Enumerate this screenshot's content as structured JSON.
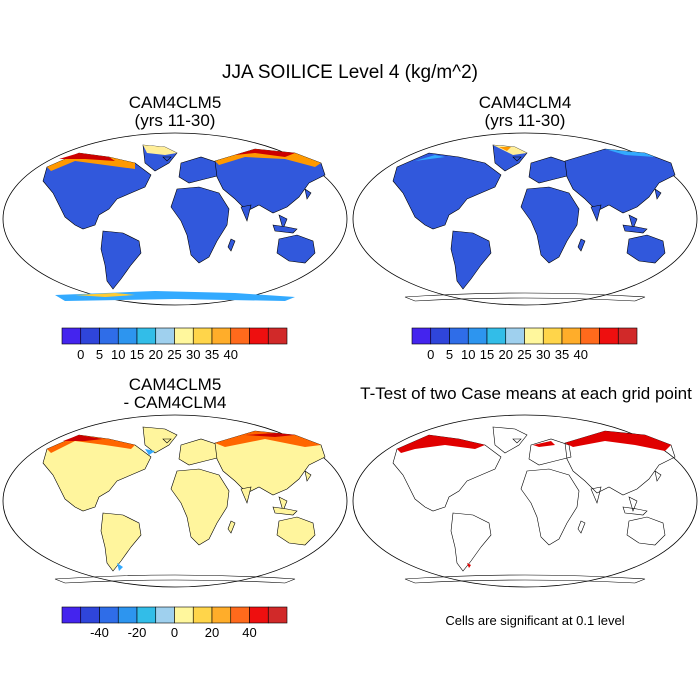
{
  "title": "JJA SOILICE Level 4 (kg/m^2)",
  "panels": [
    {
      "id": "p1",
      "title_line1": "CAM4CLM5",
      "title_line2": "(yrs 11-30)",
      "fill": "#3158dc",
      "highlights": [
        {
          "region": "northern-high-latitudes",
          "colors": [
            "#cc0000",
            "#ff9900",
            "#ffee99",
            "#33aaff"
          ]
        },
        {
          "region": "antarctic-coast",
          "colors": [
            "#ffcc33",
            "#33aaff"
          ]
        }
      ]
    },
    {
      "id": "p2",
      "title_line1": "CAM4CLM4",
      "title_line2": "(yrs 11-30)",
      "fill": "#3158dc",
      "highlights": [
        {
          "region": "greenland-siberia-edges",
          "colors": [
            "#ff9900",
            "#ffee99",
            "#33aaff"
          ]
        }
      ]
    },
    {
      "id": "p3",
      "title_line1": "CAM4CLM5",
      "title_line2": "- CAM4CLM4",
      "fill": "#fff59d",
      "highlights": [
        {
          "region": "northern-high-latitudes",
          "colors": [
            "#cc0000",
            "#ff6600",
            "#33aaff"
          ]
        }
      ]
    },
    {
      "id": "p4",
      "title_line1": "T-Test of two Case means at each grid point",
      "title_line2": "",
      "fill": "none",
      "highlights": [
        {
          "region": "northern-high-latitudes",
          "colors": [
            "#e00000"
          ]
        }
      ]
    }
  ],
  "colorbars": [
    {
      "id": "cb1",
      "colors": [
        "#4424ee",
        "#2f45db",
        "#2f6de8",
        "#2d95ef",
        "#32bde8",
        "#9fd0ee",
        "#fff79d",
        "#ffd54a",
        "#ffad2a",
        "#ff6a1c",
        "#ee0f0f",
        "#d12929"
      ],
      "labels": [
        "0",
        "5",
        "10",
        "15",
        "20",
        "25",
        "30",
        "35",
        "40"
      ],
      "label_start_index": 1
    },
    {
      "id": "cb2",
      "colors": [
        "#4424ee",
        "#2f45db",
        "#2f6de8",
        "#2d95ef",
        "#32bde8",
        "#9fd0ee",
        "#fff79d",
        "#ffd54a",
        "#ffad2a",
        "#ff6a1c",
        "#ee0f0f",
        "#d12929"
      ],
      "labels": [
        "0",
        "5",
        "10",
        "15",
        "20",
        "25",
        "30",
        "35",
        "40"
      ],
      "label_start_index": 1
    },
    {
      "id": "cb3",
      "colors": [
        "#4424ee",
        "#2f45db",
        "#2f6de8",
        "#2d95ef",
        "#32bde8",
        "#9fd0ee",
        "#fff79d",
        "#ffd54a",
        "#ffad2a",
        "#ff6a1c",
        "#ee0f0f",
        "#d12929"
      ],
      "labels": [
        "-40",
        "-20",
        "0",
        "20",
        "40"
      ],
      "label_boundaries": [
        2,
        4,
        6,
        8,
        10
      ]
    }
  ],
  "significance_note": "Cells are significant at 0.1 level"
}
